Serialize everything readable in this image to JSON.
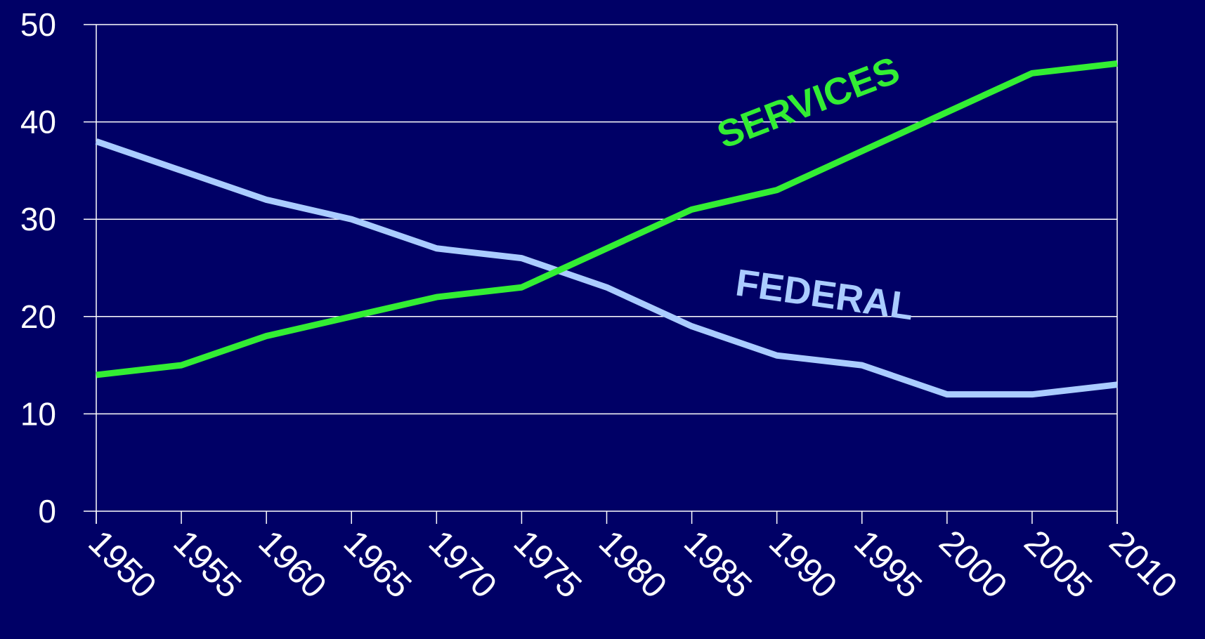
{
  "chart_data": {
    "type": "line",
    "x": [
      1950,
      1955,
      1960,
      1965,
      1970,
      1975,
      1980,
      1985,
      1990,
      1995,
      2000,
      2005,
      2010
    ],
    "xlim": [
      1950,
      2010
    ],
    "xticks": [
      1950,
      1955,
      1960,
      1965,
      1970,
      1975,
      1980,
      1985,
      1990,
      1995,
      2000,
      2005,
      2010
    ],
    "ylim": [
      0,
      50
    ],
    "yticks": [
      0,
      10,
      20,
      30,
      40,
      50
    ],
    "grid": true,
    "series": [
      {
        "name": "FEDERAL",
        "color": "#aaccff",
        "values": [
          38,
          35,
          32,
          30,
          27,
          26,
          23,
          19,
          16,
          15,
          12,
          12,
          13
        ]
      },
      {
        "name": "SERVICES",
        "color": "#33ee33",
        "values": [
          14,
          15,
          18,
          20,
          22,
          23,
          27,
          31,
          33,
          37,
          41,
          45,
          46
        ]
      }
    ]
  }
}
